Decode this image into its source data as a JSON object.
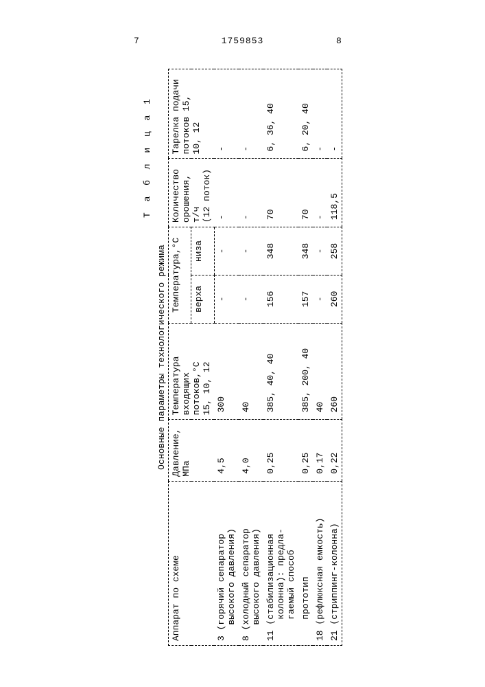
{
  "header": {
    "page_left": "7",
    "patent_no": "1759853",
    "page_right": "8"
  },
  "table": {
    "caption": "Т а б л и ц а  1",
    "subtitle": "Основные параметры технологического режима",
    "head": {
      "apparatus": "Аппарат по схеме",
      "pressure": "Давление, МПа",
      "temp_streams_l1": "Температура",
      "temp_streams_l2": "входящих",
      "temp_streams_l3": "потоков,°С",
      "temp_streams_l4": "15, 10, 12",
      "temp_c": "Температура,°С",
      "top": "верха",
      "bottom": "низа",
      "reflux_l1": "Количество",
      "reflux_l2": "орошения,",
      "reflux_l3": "т/ч",
      "reflux_l4": "(12 поток)",
      "tray_l1": "Тарелка подачи",
      "tray_l2": "потоков 15,",
      "tray_l3": "10, 12"
    },
    "rows": [
      {
        "a": "3 (горячий сепаратор\n   высокого давления)",
        "p": "4,5",
        "t": "300",
        "tv": "-",
        "tn": "-",
        "r": "-",
        "tr": "-"
      },
      {
        "a": "8 (холодный сепаратор\n   высокого давления)",
        "p": "4,0",
        "t": "40",
        "tv": "-",
        "tn": "-",
        "r": "-",
        "tr": "-"
      },
      {
        "a": "11 (стабилизационная\n    колонна): предла-\n    гаемый способ",
        "p": "0,25",
        "t": "385, 40, 40",
        "tv": "156",
        "tn": "348",
        "r": "70",
        "tr": "6, 36, 40"
      },
      {
        "a": "    прототип",
        "p": "0,25",
        "t": "385, 200, 40",
        "tv": "157",
        "tn": "348",
        "r": "70",
        "tr": "6, 20, 40"
      },
      {
        "a": "18 (рефлюксная емкость)",
        "p": "0,17",
        "t": "40",
        "tv": "-",
        "tn": "-",
        "r": "-",
        "tr": "-"
      },
      {
        "a": "21 (стриппинг-колонна)",
        "p": "0,22",
        "t": "260",
        "tv": "260",
        "tn": "258",
        "r": "118,5",
        "tr": "-"
      }
    ]
  },
  "style": {
    "font_family": "Courier New",
    "font_size_pt": 10,
    "text_color": "#000000",
    "background_color": "#ffffff",
    "border_style": "dashed",
    "border_color": "#000000"
  }
}
